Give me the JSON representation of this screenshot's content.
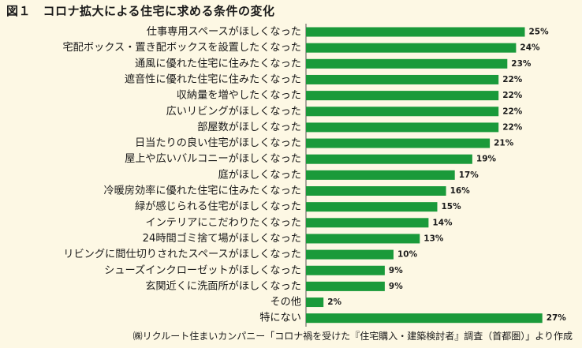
{
  "title": "図１　コロナ拡大による住宅に求める条件の変化",
  "source": "㈱リクルート住まいカンパニー「コロナ禍を受けた『住宅購入・建築検討者』調査（首都圏）」より作成",
  "colors": {
    "bar": "#1a9a3a",
    "background": "#fdf8e4",
    "axis": "#555555"
  },
  "chart_data": {
    "type": "bar",
    "orientation": "horizontal",
    "title": "図１　コロナ拡大による住宅に求める条件の変化",
    "categories": [
      "仕事専用スペースがほしくなった",
      "宅配ボックス・置き配ボックスを設置したくなった",
      "通風に優れた住宅に住みたくなった",
      "遮音性に優れた住宅に住みたくなった",
      "収納量を増やしたくなった",
      "広いリビングがほしくなった",
      "部屋数がほしくなった",
      "日当たりの良い住宅がほしくなった",
      "屋上や広いバルコニーがほしくなった",
      "庭がほしくなった",
      "冷暖房効率に優れた住宅に住みたくなった",
      "緑が感じられる住宅がほしくなった",
      "インテリアにこだわりたくなった",
      "24時間ゴミ捨て場がほしくなった",
      "リビングに間仕切りされたスペースがほしくなった",
      "シューズインクローゼットがほしくなった",
      "玄関近くに洗面所がほしくなった",
      "その他",
      "特にない"
    ],
    "values": [
      25,
      24,
      23,
      22,
      22,
      22,
      22,
      21,
      19,
      17,
      16,
      15,
      14,
      13,
      10,
      9,
      9,
      2,
      27
    ],
    "value_labels": [
      "25%",
      "24%",
      "23%",
      "22%",
      "22%",
      "22%",
      "22%",
      "21%",
      "19%",
      "17%",
      "16%",
      "15%",
      "14%",
      "13%",
      "10%",
      "9%",
      "9%",
      "2%",
      "27%"
    ],
    "unit": "%",
    "xlim": [
      0,
      27
    ],
    "grid": false,
    "legend": "none"
  }
}
